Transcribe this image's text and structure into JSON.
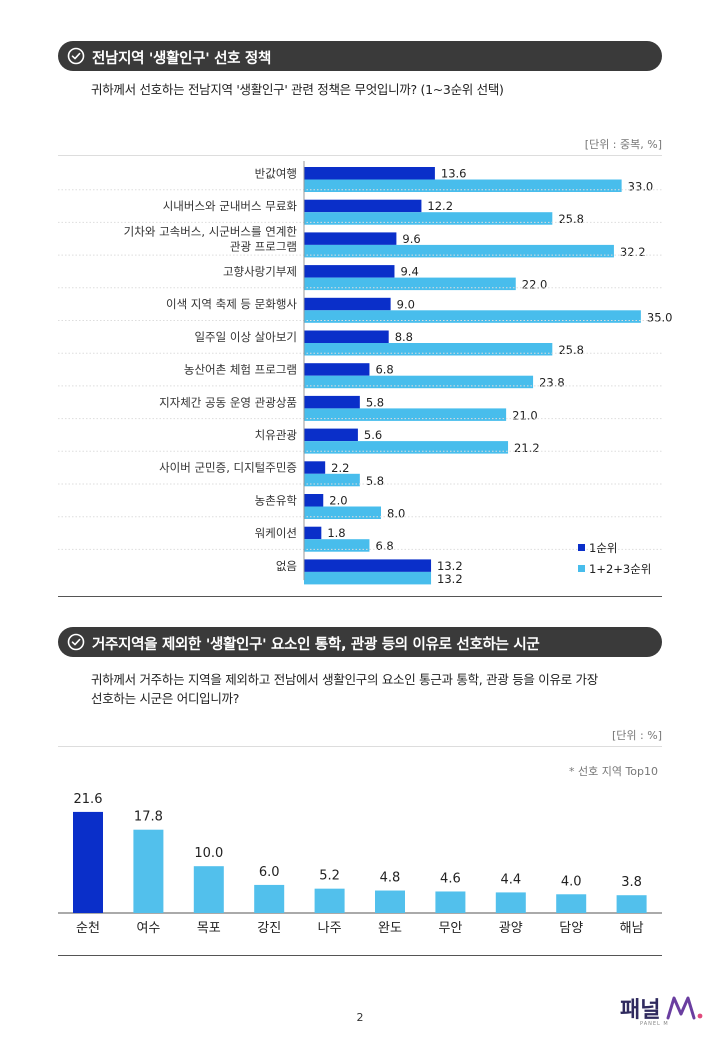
{
  "section1": {
    "title": "전남지역 '생활인구' 선호 정책",
    "question": "귀하께서 선호하는 전남지역 '생활인구' 관련 정책은 무엇입니까? (1~3순위 선택)",
    "unit": "[단위 : 중복, %]"
  },
  "section2": {
    "title": "거주지역을 제외한 '생활인구' 요소인 통학, 관광 등의 이유로 선호하는 시군",
    "question_line1": "귀하께서 거주하는 지역을 제외하고 전남에서 생활인구의 요소인 통근과 통학, 관광 등을 이유로 가장",
    "question_line2": "선호하는 시군은 어디입니까?",
    "unit": "[단위 : %]",
    "note": "* 선호 지역 Top10"
  },
  "page_number": "2",
  "logo": {
    "text": "패널",
    "subtext": "PANEL M"
  },
  "colors": {
    "series1": "#0a2fc9",
    "series2": "#48bdec",
    "header_bg": "#3a3a3a",
    "single_first": "#0a2fc9",
    "single_rest": "#52c0ec"
  },
  "chart_data": [
    {
      "type": "bar",
      "orientation": "horizontal",
      "categories": [
        [
          "반값여행"
        ],
        [
          "시내버스와 군내버스 무료화"
        ],
        [
          "기차와 고속버스, 시군버스를 연계한",
          "관광 프로그램"
        ],
        [
          "고향사랑기부제"
        ],
        [
          "이색 지역 축제 등 문화행사"
        ],
        [
          "일주일 이상 살아보기"
        ],
        [
          "농산어촌 체험 프로그램"
        ],
        [
          "지자체간 공동 운영 관광상품"
        ],
        [
          "치유관광"
        ],
        [
          "사이버 군민증, 디지털주민증"
        ],
        [
          "농촌유학"
        ],
        [
          "워케이션"
        ],
        [
          "없음"
        ]
      ],
      "series": [
        {
          "name": "1순위",
          "values": [
            13.6,
            12.2,
            9.6,
            9.4,
            9.0,
            8.8,
            6.8,
            5.8,
            5.6,
            2.2,
            2.0,
            1.8,
            13.2
          ],
          "labels": [
            "13.6",
            "12.2",
            "9.6",
            "9.4",
            "9.0",
            "8.8",
            "6.8",
            "5.8",
            "5.6",
            "2.2",
            "2.0",
            "1.8",
            "13.2"
          ]
        },
        {
          "name": "1+2+3순위",
          "values": [
            33.0,
            25.8,
            32.2,
            22.0,
            35.0,
            25.8,
            23.8,
            21.0,
            21.2,
            5.8,
            8.0,
            6.8,
            13.2
          ],
          "labels": [
            "33.0",
            "25.8",
            "32.2",
            "22.0",
            "35.0",
            "25.8",
            "23.8",
            "21.0",
            "21.2",
            "5.8",
            "8.0",
            "6.8",
            "13.2"
          ]
        }
      ],
      "xlim": [
        0,
        40
      ],
      "legend": "bottom-right"
    },
    {
      "type": "bar",
      "categories": [
        "순천",
        "여수",
        "목포",
        "강진",
        "나주",
        "완도",
        "무안",
        "광양",
        "담양",
        "해남"
      ],
      "values": [
        21.6,
        17.8,
        10.0,
        6.0,
        5.2,
        4.8,
        4.6,
        4.4,
        4.0,
        3.8
      ],
      "labels": [
        "21.6",
        "17.8",
        "10.0",
        "6.0",
        "5.2",
        "4.8",
        "4.6",
        "4.4",
        "4.0",
        "3.8"
      ],
      "ylim": [
        0,
        25
      ]
    }
  ]
}
